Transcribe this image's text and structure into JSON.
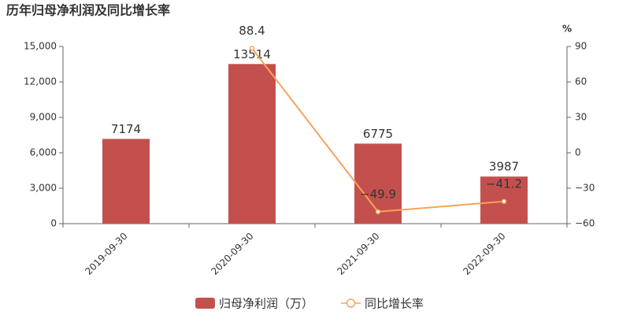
{
  "chart_data": {
    "type": "bar",
    "title": "历年归母净利润及同比增长率",
    "categories": [
      "2019-09-30",
      "2020-09-30",
      "2021-09-30",
      "2022-09-30"
    ],
    "series": [
      {
        "name": "归母净利润（万）",
        "type": "bar",
        "color": "#c4504e",
        "values": [
          7174,
          13514,
          6775,
          3987
        ]
      },
      {
        "name": "同比增长率",
        "type": "line",
        "axis": "y2",
        "color": "#f5a35b",
        "values": [
          null,
          88.4,
          -49.9,
          -41.2
        ],
        "value_labels": [
          null,
          "88.4",
          "−49.9",
          "−41.2"
        ]
      }
    ],
    "ylim": [
      0,
      15000
    ],
    "yticks": [
      0,
      {
        "value": 3000,
        "label": "3,000"
      },
      {
        "value": 6000,
        "label": "6,000"
      },
      {
        "value": 9000,
        "label": "9,000"
      },
      {
        "value": 12000,
        "label": "12,000"
      },
      {
        "value": 15000,
        "label": "15,000"
      }
    ],
    "y2lim": [
      -60,
      90
    ],
    "y2ticks": [
      {
        "value": -60,
        "label": "−60"
      },
      {
        "value": -30,
        "label": "−30"
      },
      0,
      30,
      60,
      90
    ],
    "y2label": "%",
    "grid": false,
    "legend": "bottom"
  }
}
